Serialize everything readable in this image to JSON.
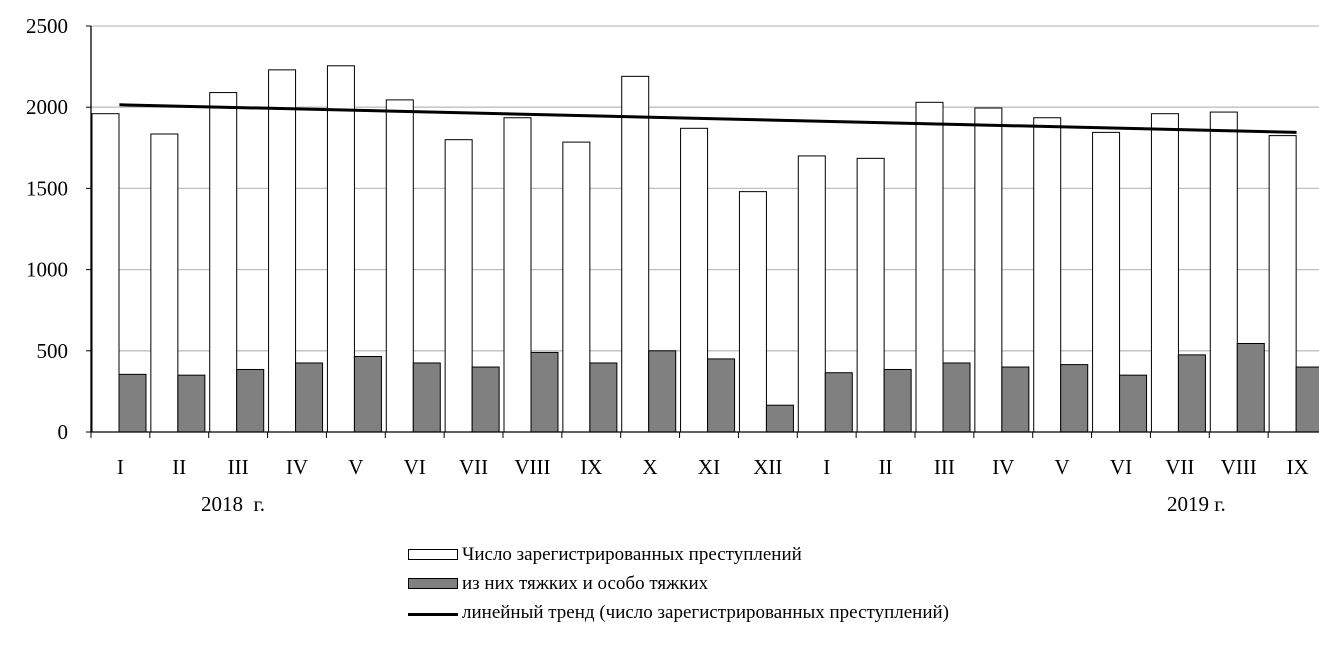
{
  "chart_data": {
    "type": "bar",
    "categories": [
      "I",
      "II",
      "III",
      "IV",
      "V",
      "VI",
      "VII",
      "VIII",
      "IX",
      "X",
      "XI",
      "XII",
      "I",
      "II",
      "III",
      "IV",
      "V",
      "VI",
      "VII",
      "VIII",
      "IX"
    ],
    "year_labels": [
      "2018  г.",
      "2019 г."
    ],
    "series": [
      {
        "name": "Число зарегистрированных преступлений",
        "values": [
          1960,
          1835,
          2090,
          2230,
          2255,
          2045,
          1800,
          1935,
          1785,
          2190,
          1870,
          1480,
          1700,
          1685,
          2030,
          1995,
          1935,
          1845,
          1960,
          1970,
          1825
        ]
      },
      {
        "name": "из них тяжких и особо тяжких",
        "values": [
          355,
          350,
          385,
          425,
          465,
          425,
          400,
          490,
          425,
          500,
          450,
          165,
          365,
          385,
          425,
          400,
          415,
          350,
          475,
          545,
          400
        ]
      }
    ],
    "trend": {
      "name": "линейный  тренд (число зарегистрированных преступлений)",
      "start": 2015,
      "end": 1845
    },
    "ylim": [
      0,
      2500
    ],
    "yticks": [
      0,
      500,
      1000,
      1500,
      2000,
      2500
    ],
    "grid": true,
    "legend_position": "bottom",
    "colors": {
      "series1_fill": "#ffffff",
      "series2_fill": "#808080",
      "outline": "#000000",
      "grid": "#bfbfbf"
    }
  }
}
